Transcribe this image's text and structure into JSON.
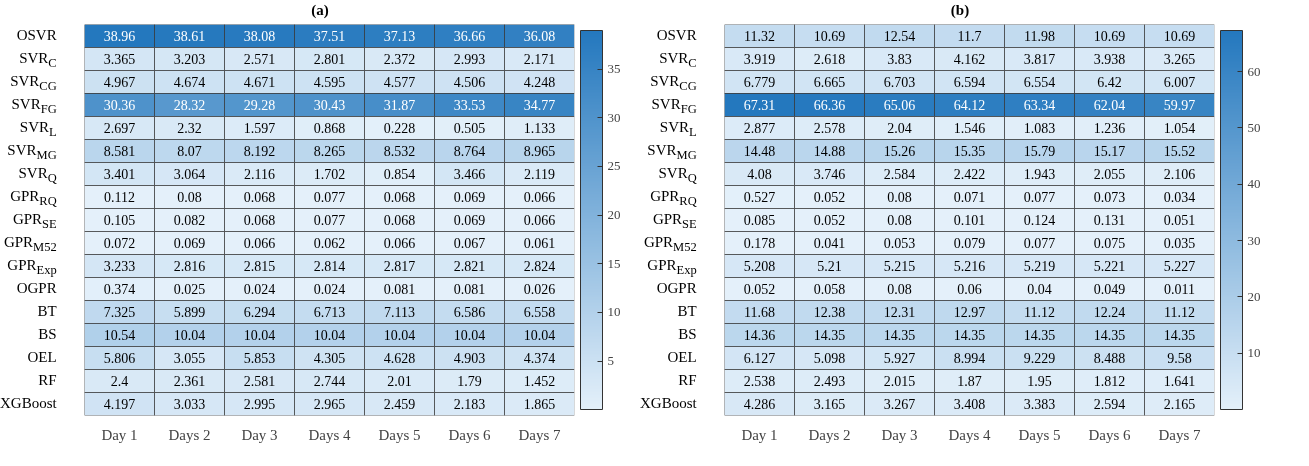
{
  "chart_data": [
    {
      "type": "heatmap",
      "title": "(a)",
      "data_labels": true,
      "clim": [
        0.024,
        38.96
      ],
      "cticks": [
        5,
        10,
        15,
        20,
        25,
        30,
        35
      ],
      "categories": [
        "Day 1",
        "Days 2",
        "Day 3",
        "Days 4",
        "Days 5",
        "Days 6",
        "Days 7"
      ],
      "y_categories": [
        "OSVR",
        "SVR$_{C}$",
        "SVR$_{CG}$",
        "SVR$_{FG}$",
        "SVR$_{L}$",
        "SVR$_{MG}$",
        "SVR$_{Q}$",
        "GPR$_{RQ}$",
        "GPR$_{SE}$",
        "GPR$_{M52}$",
        "GPR$_{Exp}$",
        "OGPR",
        "BT",
        "BS",
        "OEL",
        "RF",
        "XGBoost"
      ],
      "cells": [
        [
          38.96,
          38.61,
          38.08,
          37.51,
          37.13,
          36.66,
          36.08
        ],
        [
          3.365,
          3.203,
          2.571,
          2.801,
          2.372,
          2.993,
          2.171
        ],
        [
          4.967,
          4.674,
          4.671,
          4.595,
          4.577,
          4.506,
          4.248
        ],
        [
          30.36,
          28.32,
          29.28,
          30.43,
          31.87,
          33.53,
          34.77
        ],
        [
          2.697,
          2.32,
          1.597,
          0.868,
          0.228,
          0.505,
          1.133
        ],
        [
          8.581,
          8.07,
          8.192,
          8.265,
          8.532,
          8.764,
          8.965
        ],
        [
          3.401,
          3.064,
          2.116,
          1.702,
          0.854,
          3.466,
          2.119
        ],
        [
          0.112,
          0.08,
          0.068,
          0.077,
          0.068,
          0.069,
          0.066
        ],
        [
          0.105,
          0.082,
          0.068,
          0.077,
          0.068,
          0.069,
          0.066
        ],
        [
          0.072,
          0.069,
          0.066,
          0.062,
          0.066,
          0.067,
          0.061
        ],
        [
          3.233,
          2.816,
          2.815,
          2.814,
          2.817,
          2.821,
          2.824
        ],
        [
          0.374,
          0.025,
          0.024,
          0.024,
          0.081,
          0.081,
          0.026
        ],
        [
          7.325,
          5.899,
          6.294,
          6.713,
          7.113,
          6.586,
          6.558
        ],
        [
          10.54,
          10.04,
          10.04,
          10.04,
          10.04,
          10.04,
          10.04
        ],
        [
          5.806,
          3.055,
          5.853,
          4.305,
          4.628,
          4.903,
          4.374
        ],
        [
          2.4,
          2.361,
          2.581,
          2.744,
          2.01,
          1.79,
          1.452
        ],
        [
          4.197,
          3.033,
          2.995,
          2.965,
          2.459,
          2.183,
          1.865
        ]
      ]
    },
    {
      "type": "heatmap",
      "title": "(b)",
      "data_labels": true,
      "clim": [
        0.011,
        67.31
      ],
      "cticks": [
        10,
        20,
        30,
        40,
        50,
        60
      ],
      "categories": [
        "Day 1",
        "Days 2",
        "Day 3",
        "Days 4",
        "Days 5",
        "Days 6",
        "Days 7"
      ],
      "y_categories": [
        "OSVR",
        "SVR$_{C}$",
        "SVR$_{CG}$",
        "SVR$_{FG}$",
        "SVR$_{L}$",
        "SVR$_{MG}$",
        "SVR$_{Q}$",
        "GPR$_{RQ}$",
        "GPR$_{SE}$",
        "GPR$_{M52}$",
        "GPR$_{Exp}$",
        "OGPR",
        "BT",
        "BS",
        "OEL",
        "RF",
        "XGBoost"
      ],
      "cells": [
        [
          11.32,
          10.69,
          12.54,
          11.7,
          11.98,
          10.69,
          10.69
        ],
        [
          3.919,
          2.618,
          3.83,
          4.162,
          3.817,
          3.938,
          3.265
        ],
        [
          6.779,
          6.665,
          6.703,
          6.594,
          6.554,
          6.42,
          6.007
        ],
        [
          67.31,
          66.36,
          65.06,
          64.12,
          63.34,
          62.04,
          59.97
        ],
        [
          2.877,
          2.578,
          2.04,
          1.546,
          1.083,
          1.236,
          1.054
        ],
        [
          14.48,
          14.88,
          15.26,
          15.35,
          15.79,
          15.17,
          15.52
        ],
        [
          4.08,
          3.746,
          2.584,
          2.422,
          1.943,
          2.055,
          2.106
        ],
        [
          0.527,
          0.052,
          0.08,
          0.071,
          0.077,
          0.073,
          0.034
        ],
        [
          0.085,
          0.052,
          0.08,
          0.101,
          0.124,
          0.131,
          0.051
        ],
        [
          0.178,
          0.041,
          0.053,
          0.079,
          0.077,
          0.075,
          0.035
        ],
        [
          5.208,
          5.21,
          5.215,
          5.216,
          5.219,
          5.221,
          5.227
        ],
        [
          0.052,
          0.058,
          0.08,
          0.06,
          0.04,
          0.049,
          0.011
        ],
        [
          11.68,
          12.38,
          12.31,
          12.97,
          11.12,
          12.24,
          11.12
        ],
        [
          14.36,
          14.35,
          14.35,
          14.35,
          14.35,
          14.35,
          14.35
        ],
        [
          6.127,
          5.098,
          5.927,
          8.994,
          9.229,
          8.488,
          9.58
        ],
        [
          2.538,
          2.493,
          2.015,
          1.87,
          1.95,
          1.812,
          1.641
        ],
        [
          4.286,
          3.165,
          3.267,
          3.408,
          3.383,
          2.594,
          2.165
        ]
      ]
    }
  ]
}
